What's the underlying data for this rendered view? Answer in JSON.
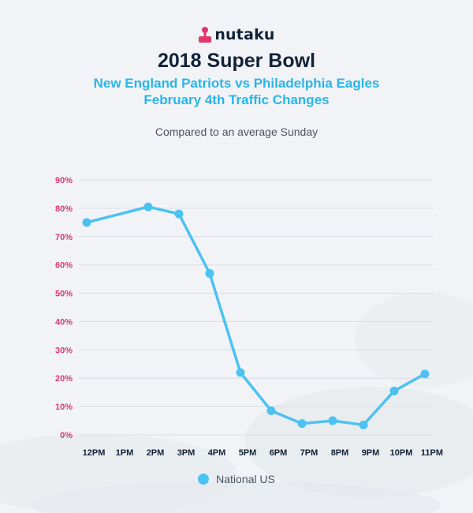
{
  "brand": {
    "name": "nutaku"
  },
  "header": {
    "title": "2018 Super Bowl",
    "subtitle_line1": "New England Patriots vs Philadelphia Eagles",
    "subtitle_line2": "February 4th Traffic Changes",
    "note": "Compared to an average Sunday"
  },
  "colors": {
    "line": "#4cc2f1",
    "y_tick_text": "#e0386d",
    "x_tick_text": "#122238",
    "grid": "#d9dde3",
    "title": "#122238",
    "subtitle": "#29b5ea"
  },
  "chart_data": {
    "type": "line",
    "title": "2018 Super Bowl",
    "subtitle": "New England Patriots vs Philadelphia Eagles February 4th Traffic Changes",
    "note": "Compared to an average Sunday",
    "xlabel": "",
    "ylabel": "",
    "x": [
      "12PM",
      "1PM",
      "2PM",
      "3PM",
      "4PM",
      "5PM",
      "6PM",
      "7PM",
      "8PM",
      "9PM",
      "10PM",
      "11PM"
    ],
    "ylim": [
      0,
      90
    ],
    "y_ticks": [
      "0%",
      "10%",
      "20%",
      "30%",
      "40%",
      "50%",
      "60%",
      "70%",
      "80%",
      "90%"
    ],
    "grid": true,
    "legend_position": "bottom-center",
    "series": [
      {
        "name": "National US",
        "points": [
          {
            "x": "12PM",
            "y": 75
          },
          {
            "x": "2PM",
            "y": 80.5
          },
          {
            "x": "3PM",
            "y": 78
          },
          {
            "x": "4PM",
            "y": 57
          },
          {
            "x": "5PM",
            "y": 22
          },
          {
            "x": "6PM",
            "y": 8.5
          },
          {
            "x": "7PM",
            "y": 4
          },
          {
            "x": "8PM",
            "y": 5
          },
          {
            "x": "9PM",
            "y": 3.5
          },
          {
            "x": "10PM",
            "y": 15.5
          },
          {
            "x": "11PM",
            "y": 21.5
          }
        ]
      }
    ]
  }
}
